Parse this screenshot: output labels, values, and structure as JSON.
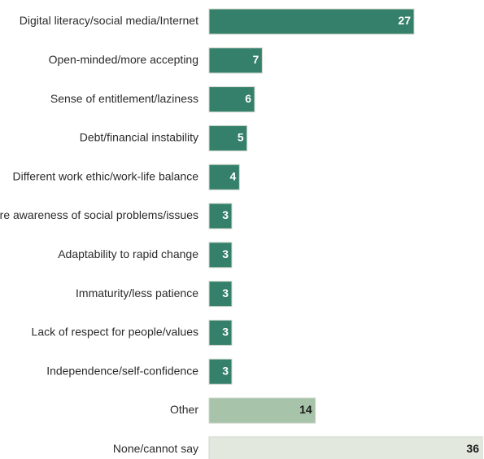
{
  "chart_data": {
    "type": "bar",
    "orientation": "horizontal",
    "title": "",
    "xlabel": "",
    "ylabel": "",
    "xlim": [
      0,
      36
    ],
    "grid": false,
    "legend": "none",
    "categories": [
      "Digital literacy/social media/Internet",
      "Open-minded/more accepting",
      "Sense of entitlement/laziness",
      "Debt/financial instability",
      "Different work ethic/work-life balance",
      "More awareness of social problems/issues",
      "Adaptability to rapid change",
      "Immaturity/less patience",
      "Lack of respect for people/values",
      "Independence/self-confidence",
      "Other",
      "None/cannot say"
    ],
    "values": [
      27,
      7,
      6,
      5,
      4,
      3,
      3,
      3,
      3,
      3,
      14,
      36
    ],
    "value_labels": [
      "27",
      "7",
      "6",
      "5",
      "4",
      "3",
      "3",
      "3",
      "3",
      "3",
      "14",
      "36"
    ],
    "bar_colors": [
      "#35806a",
      "#35806a",
      "#35806a",
      "#35806a",
      "#35806a",
      "#35806a",
      "#35806a",
      "#35806a",
      "#35806a",
      "#35806a",
      "#a7c3a9",
      "#e2e8de"
    ],
    "label_colors": [
      "#ffffff",
      "#ffffff",
      "#ffffff",
      "#ffffff",
      "#ffffff",
      "#ffffff",
      "#ffffff",
      "#ffffff",
      "#ffffff",
      "#ffffff",
      "#1a1a1a",
      "#1a1a1a"
    ],
    "label_weights": [
      "bold",
      "bold",
      "bold",
      "bold",
      "bold",
      "bold",
      "bold",
      "normal",
      "bold",
      "bold",
      "bold",
      "bold"
    ]
  }
}
